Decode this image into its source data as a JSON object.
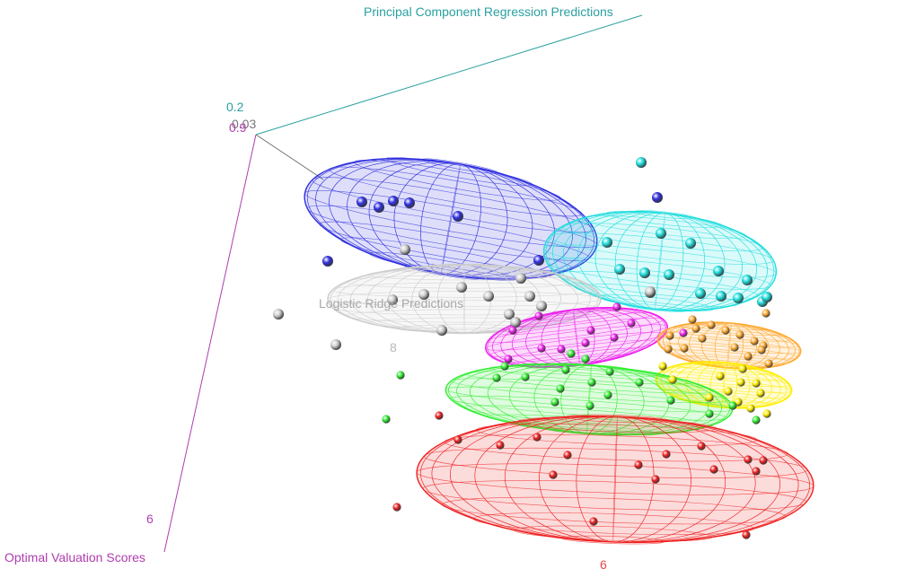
{
  "chart_data": {
    "type": "scatter",
    "dimensions": 3,
    "title": "",
    "axes": {
      "x": {
        "label": "Optimal Valuation Scores",
        "color": "#b03cb0",
        "ticks": [
          "0.9",
          "6"
        ]
      },
      "y": {
        "label": "Principal Component Regression Predictions",
        "color": "#2aa0a0",
        "ticks": [
          "0.2"
        ]
      },
      "z": {
        "label": "Logistic Ridge Predictions",
        "color": "#a8a8a8",
        "ticks": [
          "0.03",
          "8",
          "6"
        ]
      }
    },
    "ellipsoids": true,
    "grid": false,
    "legend": "none",
    "groups": [
      {
        "color": "#3030e0"
      },
      {
        "color": "#22dddd"
      },
      {
        "color": "#cccccc"
      },
      {
        "color": "#ee22ee"
      },
      {
        "color": "#ffaa33"
      },
      {
        "color": "#ffee00"
      },
      {
        "color": "#33ee33"
      },
      {
        "color": "#ee2222"
      }
    ]
  }
}
